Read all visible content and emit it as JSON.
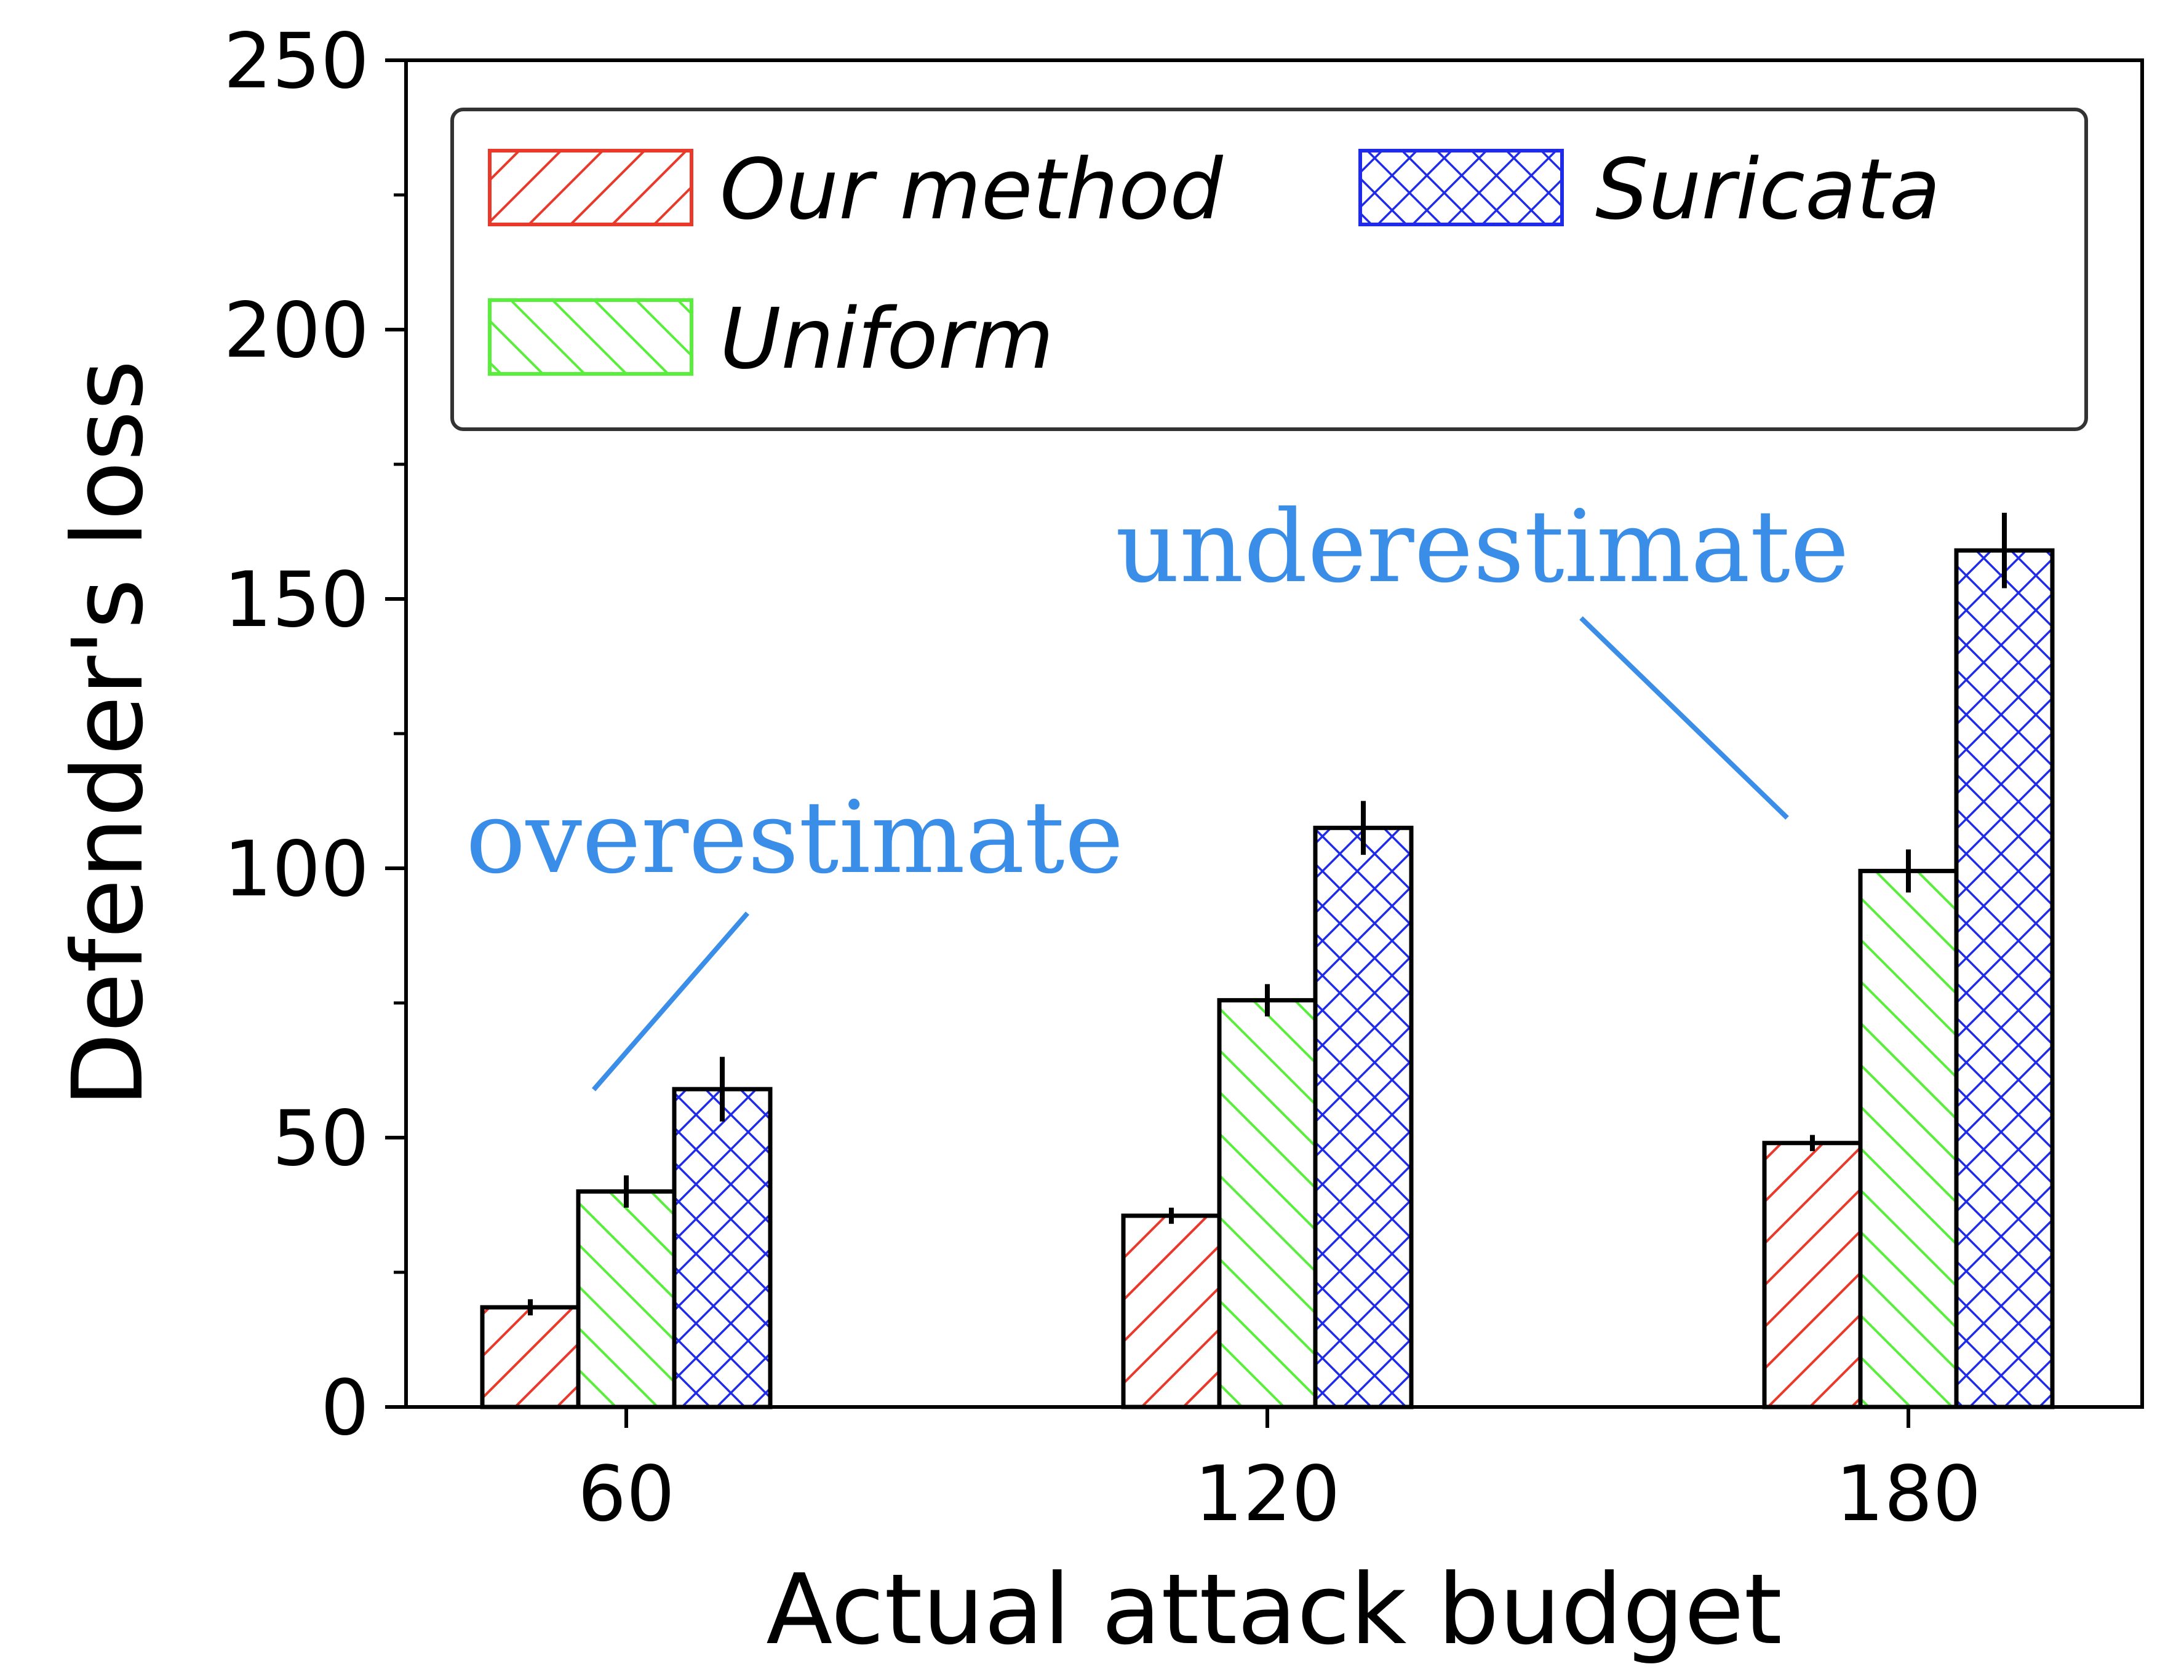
{
  "chart_data": {
    "type": "bar",
    "xlabel": "Actual attack budget",
    "ylabel": "Defender's loss",
    "categories": [
      "60",
      "120",
      "180"
    ],
    "ylim": [
      0,
      250
    ],
    "yticks": [
      0,
      50,
      100,
      150,
      200,
      250
    ],
    "series": [
      {
        "name": "Our method",
        "values": [
          18.5,
          35.5,
          49.0
        ],
        "errors": [
          1.5,
          1.5,
          1.5
        ],
        "color": "#e8392a",
        "hatch": "diagonal-up"
      },
      {
        "name": "Uniform",
        "values": [
          40.0,
          75.5,
          99.5
        ],
        "errors": [
          3.0,
          3.0,
          4.0
        ],
        "color": "#5aee3c",
        "hatch": "diagonal-down"
      },
      {
        "name": "Suricata",
        "values": [
          59.0,
          107.5,
          159.0
        ],
        "errors": [
          6.0,
          5.0,
          7.0
        ],
        "color": "#1f2be8",
        "hatch": "crosshatch"
      }
    ],
    "legend_position": "top",
    "grid": false,
    "annotations": [
      {
        "text": "overestimate",
        "color": "#3a8ee8"
      },
      {
        "text": "underestimate",
        "color": "#3a8ee8"
      }
    ]
  }
}
